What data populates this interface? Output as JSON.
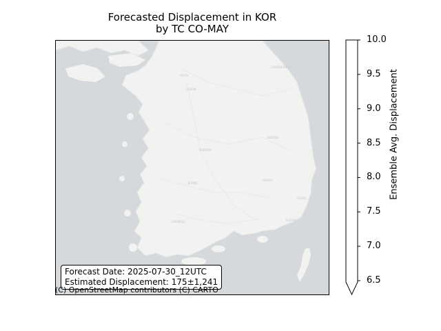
{
  "title": {
    "line1": "Forecasted Displacement in KOR",
    "line2": "by TC CO-MAY"
  },
  "info_box": {
    "forecast_date": "Forecast Date: 2025-07-30_12UTC",
    "estimated_displacement": "Estimated Displacement: 175±1,241"
  },
  "attribution": "(C) OpenStreetMap contributors (C) CARTO",
  "colorbar": {
    "label": "Ensemble Avg. Displacement",
    "range": [
      6.5,
      10.0
    ],
    "ticks": [
      "10.0",
      "9.5",
      "9.0",
      "8.5",
      "8.0",
      "7.5",
      "7.0",
      "6.5"
    ],
    "extend": "min",
    "fill_color": "#ffffff"
  },
  "colors": {
    "sea": "#d5d9dc",
    "land": "#f2f2f1",
    "coast": "#e4e6e7"
  }
}
